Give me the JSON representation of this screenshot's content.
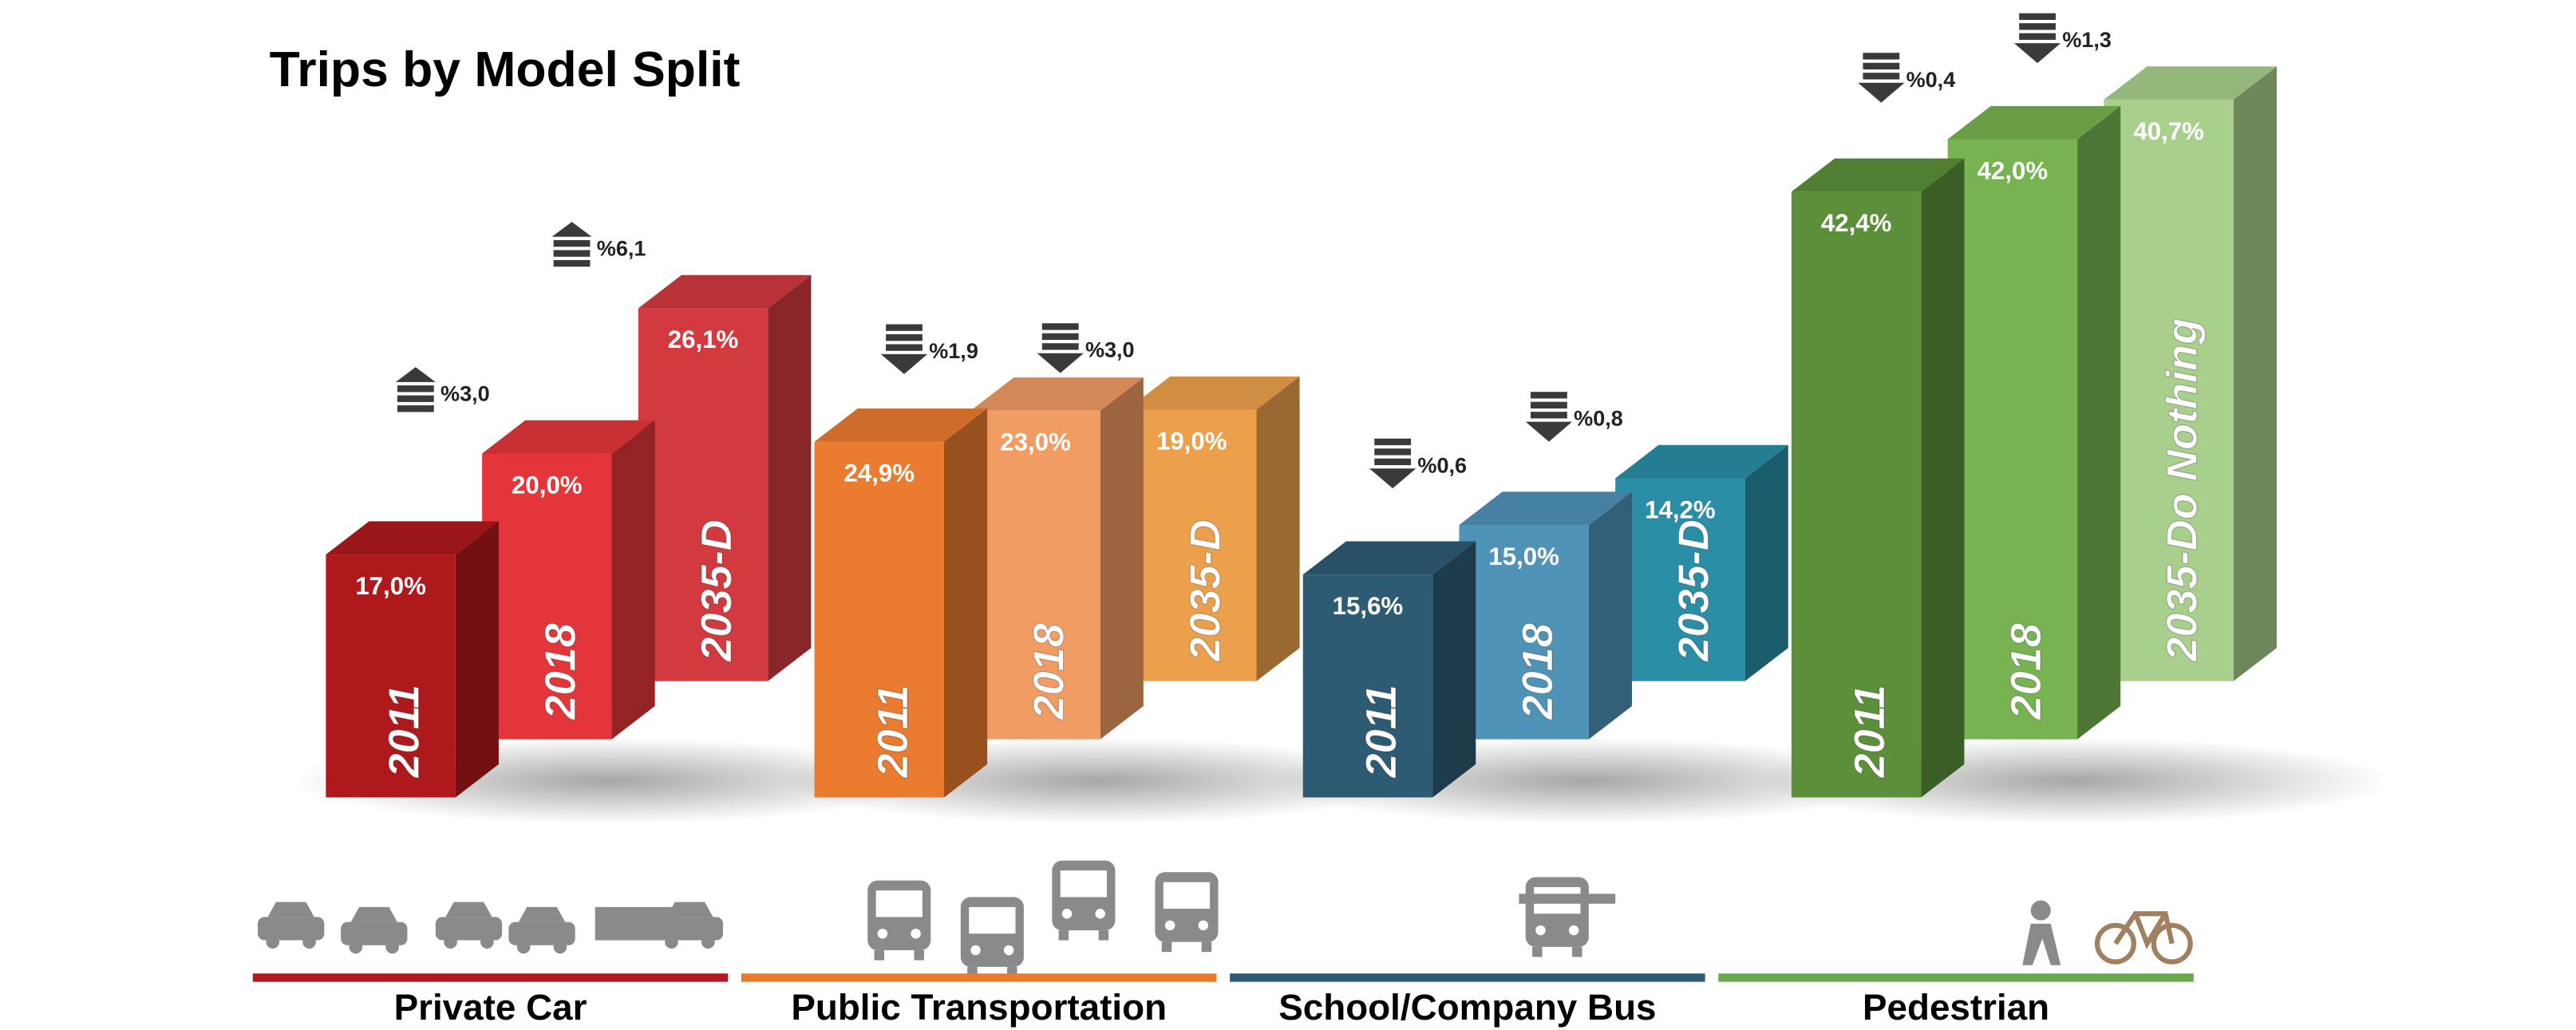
{
  "chart_data": {
    "type": "bar3d",
    "title": "Trips by Model Split",
    "categories": [
      "Private Car",
      "Public Transportation",
      "School/Company Bus",
      "Pedestrian"
    ],
    "category_colors": [
      "#b3191f",
      "#e87b2e",
      "#2e5a73",
      "#6aa84f"
    ],
    "series": [
      {
        "bar_labels": [
          "2011",
          "2011",
          "2011",
          "2011"
        ],
        "colors": [
          "#b0191c",
          "#ea7b2f",
          "#2e5b74",
          "#5b8f3a"
        ],
        "values": [
          17.0,
          24.9,
          15.6,
          42.4
        ],
        "value_labels": [
          "17,0%",
          "24,9%",
          "15,6%",
          "42,4%"
        ]
      },
      {
        "bar_labels": [
          "2018",
          "2018",
          "2018",
          "2018"
        ],
        "colors": [
          "#e4363a",
          "#f09c63",
          "#4f93b9",
          "#77b451"
        ],
        "values": [
          20.0,
          23.0,
          15.0,
          42.0
        ],
        "value_labels": [
          "20,0%",
          "23,0%",
          "15,0%",
          "42,0%"
        ],
        "changes": [
          {
            "label": "%3,0",
            "direction": "up"
          },
          {
            "label": "%1,9",
            "direction": "down"
          },
          {
            "label": "%0,6",
            "direction": "down"
          },
          {
            "label": "%0,4",
            "direction": "down"
          }
        ]
      },
      {
        "bar_labels": [
          "2035-D",
          "2035-D",
          "2035-D",
          "2035-Do Nothing"
        ],
        "colors": [
          "#d23a40",
          "#eda04b",
          "#2a8ea6",
          "#a8d08c"
        ],
        "values": [
          26.1,
          19.0,
          14.2,
          40.7
        ],
        "value_labels": [
          "26,1%",
          "19,0%",
          "14,2%",
          "40,7%"
        ],
        "changes": [
          {
            "label": "%6,1",
            "direction": "up"
          },
          {
            "label": "%3,0",
            "direction": "down"
          },
          {
            "label": "%0,8",
            "direction": "down"
          },
          {
            "label": "%1,3",
            "direction": "down"
          }
        ]
      }
    ]
  }
}
